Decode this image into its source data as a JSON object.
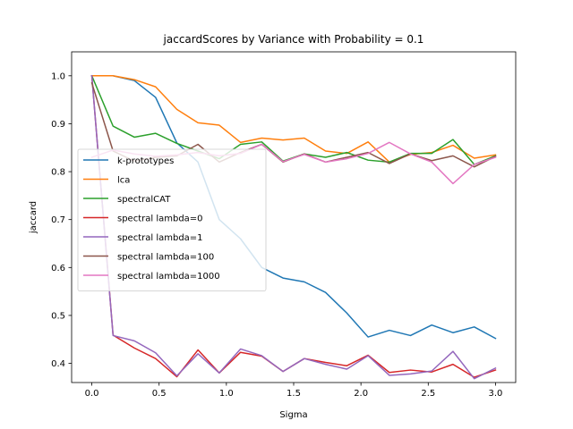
{
  "chart_data": {
    "type": "line",
    "title": "jaccardScores by Variance with Probability = 0.1",
    "xlabel": "Sigma",
    "ylabel": "jaccard",
    "xlim": [
      -0.15,
      3.15
    ],
    "ylim": [
      0.36,
      1.05
    ],
    "xticks": [
      "0.0",
      "0.5",
      "1.0",
      "1.5",
      "2.0",
      "2.5",
      "3.0"
    ],
    "yticks": [
      "0.4",
      "0.5",
      "0.6",
      "0.7",
      "0.8",
      "0.9",
      "1.0"
    ],
    "legend_position": "center-left",
    "x": [
      0.0,
      0.158,
      0.316,
      0.474,
      0.632,
      0.789,
      0.947,
      1.105,
      1.263,
      1.421,
      1.579,
      1.737,
      1.895,
      2.053,
      2.211,
      2.368,
      2.526,
      2.684,
      2.842,
      3.0
    ],
    "series": [
      {
        "name": "k-prototypes",
        "color": "#1f77b4",
        "values": [
          1.0,
          1.0,
          0.99,
          0.955,
          0.86,
          0.82,
          0.7,
          0.66,
          0.6,
          0.578,
          0.57,
          0.548,
          0.505,
          0.455,
          0.469,
          0.458,
          0.48,
          0.464,
          0.476,
          0.452
        ]
      },
      {
        "name": "lca",
        "color": "#ff7f0e",
        "values": [
          1.0,
          1.0,
          0.992,
          0.977,
          0.93,
          0.902,
          0.897,
          0.861,
          0.87,
          0.866,
          0.87,
          0.843,
          0.838,
          0.862,
          0.82,
          0.836,
          0.84,
          0.855,
          0.828,
          0.835
        ]
      },
      {
        "name": "spectralCAT",
        "color": "#2ca02c",
        "values": [
          1.0,
          0.895,
          0.872,
          0.88,
          0.859,
          0.843,
          0.827,
          0.857,
          0.862,
          0.822,
          0.837,
          0.83,
          0.84,
          0.824,
          0.82,
          0.838,
          0.838,
          0.867,
          0.815,
          0.833
        ]
      },
      {
        "name": "spectral lambda=0",
        "color": "#d62728",
        "values": [
          1.0,
          0.459,
          0.432,
          0.41,
          0.372,
          0.428,
          0.38,
          0.423,
          0.415,
          0.383,
          0.41,
          0.402,
          0.395,
          0.417,
          0.381,
          0.386,
          0.382,
          0.398,
          0.371,
          0.386
        ]
      },
      {
        "name": "spectral lambda=1",
        "color": "#9467bd",
        "values": [
          1.0,
          0.458,
          0.447,
          0.422,
          0.374,
          0.42,
          0.38,
          0.43,
          0.416,
          0.383,
          0.41,
          0.398,
          0.388,
          0.416,
          0.375,
          0.378,
          0.384,
          0.425,
          0.368,
          0.39
        ]
      },
      {
        "name": "spectral lambda=100",
        "color": "#8c564b",
        "values": [
          0.985,
          0.843,
          0.822,
          0.83,
          0.833,
          0.857,
          0.82,
          0.84,
          0.857,
          0.82,
          0.837,
          0.82,
          0.83,
          0.84,
          0.817,
          0.837,
          0.823,
          0.833,
          0.81,
          0.832
        ]
      },
      {
        "name": "spectral lambda=1000",
        "color": "#e377c2",
        "values": [
          0.83,
          0.845,
          0.837,
          0.832,
          0.835,
          0.84,
          0.833,
          0.838,
          0.857,
          0.821,
          0.836,
          0.82,
          0.827,
          0.838,
          0.861,
          0.837,
          0.82,
          0.775,
          0.815,
          0.83
        ]
      }
    ]
  }
}
